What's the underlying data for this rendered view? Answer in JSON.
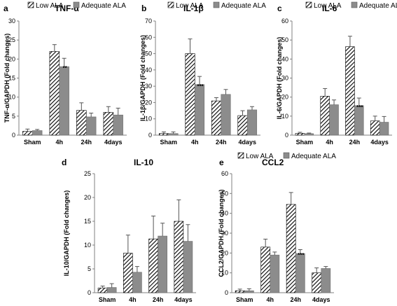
{
  "legend": {
    "low_label": "Low ALA",
    "adequate_label": "Adequate ALA"
  },
  "colors": {
    "adequate_fill": "#8c8c8c",
    "hatch_stroke": "#000000",
    "axis": "#808080",
    "error_bar": "#555555"
  },
  "chart_data": [
    {
      "id": "a",
      "type": "bar",
      "letter": "a",
      "title": "TNF-α",
      "ylabel": "TNF-α/GAPDH (Fold changes)",
      "categories": [
        "Sham",
        "4h",
        "24h",
        "4days"
      ],
      "ylim": [
        0,
        30
      ],
      "yticks": [
        0,
        5,
        10,
        15,
        20,
        25,
        30
      ],
      "series": [
        {
          "name": "Low ALA",
          "values": [
            1.0,
            22.0,
            6.5,
            6.0
          ],
          "errors": [
            0.6,
            1.8,
            2.0,
            1.5
          ]
        },
        {
          "name": "Adequate ALA",
          "values": [
            1.2,
            18.0,
            4.8,
            5.3
          ],
          "errors": [
            0.3,
            2.2,
            1.0,
            1.8
          ]
        }
      ],
      "significance": [
        {
          "category": "4h",
          "series": "Adequate ALA",
          "label": "**"
        }
      ]
    },
    {
      "id": "b",
      "type": "bar",
      "letter": "b",
      "title": "IL-1β",
      "ylabel": "IL-1β/GAPDH (Fold changes)",
      "categories": [
        "Sham",
        "4h",
        "24h",
        "4days"
      ],
      "ylim": [
        0,
        70
      ],
      "yticks": [
        0,
        10,
        20,
        30,
        40,
        50,
        60,
        70
      ],
      "series": [
        {
          "name": "Low ALA",
          "values": [
            1.0,
            50.0,
            21.0,
            12.0
          ],
          "errors": [
            1.0,
            9.0,
            2.0,
            3.0
          ]
        },
        {
          "name": "Adequate ALA",
          "values": [
            1.0,
            31.0,
            25.0,
            15.5
          ],
          "errors": [
            1.0,
            5.0,
            3.0,
            2.0
          ]
        }
      ],
      "significance": [
        {
          "category": "4h",
          "series": "Adequate ALA",
          "label": "***"
        }
      ]
    },
    {
      "id": "c",
      "type": "bar",
      "letter": "c",
      "title": "IL-6",
      "ylabel": "IL-6/GAPDH (Fold changes)",
      "categories": [
        "Sham",
        "4h",
        "24h",
        "4days"
      ],
      "ylim": [
        0,
        60
      ],
      "yticks": [
        0,
        10,
        20,
        30,
        40,
        50,
        60
      ],
      "series": [
        {
          "name": "Low ALA",
          "values": [
            1.0,
            20.5,
            46.5,
            7.5
          ],
          "errors": [
            0.5,
            4.0,
            5.5,
            2.5
          ]
        },
        {
          "name": "Adequate ALA",
          "values": [
            0.8,
            16.0,
            15.5,
            6.8
          ],
          "errors": [
            0.3,
            2.5,
            4.0,
            3.0
          ]
        }
      ],
      "significance": [
        {
          "category": "24h",
          "series": "Adequate ALA",
          "label": "***"
        }
      ]
    },
    {
      "id": "d",
      "type": "bar",
      "letter": "d",
      "title": "IL-10",
      "ylabel": "IL-10/GAPDH (Fold changes)",
      "categories": [
        "Sham",
        "4h",
        "24h",
        "4days"
      ],
      "ylim": [
        0,
        25
      ],
      "yticks": [
        0,
        5,
        10,
        15,
        20,
        25
      ],
      "series": [
        {
          "name": "Low ALA",
          "values": [
            1.0,
            8.3,
            11.3,
            15.0
          ],
          "errors": [
            0.4,
            3.8,
            4.8,
            4.5
          ]
        },
        {
          "name": "Adequate ALA",
          "values": [
            1.1,
            4.3,
            11.9,
            10.8
          ],
          "errors": [
            0.8,
            1.2,
            2.7,
            3.5
          ]
        }
      ],
      "significance": []
    },
    {
      "id": "e",
      "type": "bar",
      "letter": "e",
      "title": "CCL2",
      "ylabel": "CCL2/GAPDH (Fold changes)",
      "categories": [
        "Sham",
        "4h",
        "24h",
        "4days"
      ],
      "ylim": [
        0,
        60
      ],
      "yticks": [
        0,
        10,
        20,
        30,
        40,
        50,
        60
      ],
      "series": [
        {
          "name": "Low ALA",
          "values": [
            1.0,
            23.0,
            44.5,
            10.0
          ],
          "errors": [
            0.8,
            4.0,
            6.0,
            2.5
          ]
        },
        {
          "name": "Adequate ALA",
          "values": [
            1.0,
            19.0,
            19.7,
            12.2
          ],
          "errors": [
            1.0,
            1.5,
            2.0,
            1.0
          ]
        }
      ],
      "significance": [
        {
          "category": "24h",
          "series": "Adequate ALA",
          "label": "***"
        }
      ]
    }
  ]
}
